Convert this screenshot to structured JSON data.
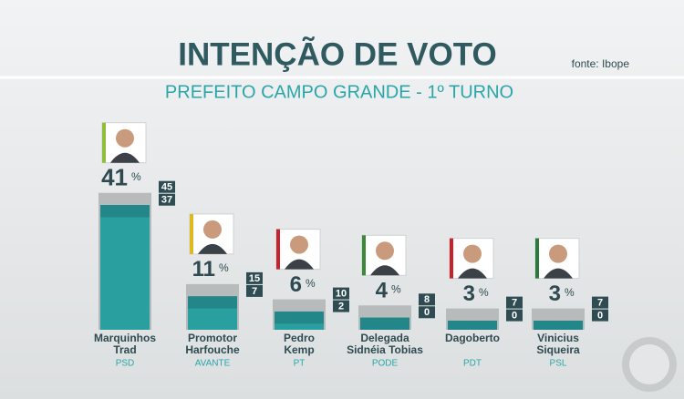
{
  "chart_data": {
    "type": "bar",
    "title": "INTENÇÃO DE VOTO",
    "subtitle": "PREFEITO CAMPO GRANDE - 1º TURNO",
    "source": "fonte: Ibope",
    "unit": "%",
    "categories": [
      [
        "Marquinhos",
        "Trad"
      ],
      [
        "Promotor",
        "Harfouche"
      ],
      [
        "Pedro",
        "Kemp"
      ],
      [
        "Delegada",
        "Sidnéia Tobias"
      ],
      [
        "Dagoberto"
      ],
      [
        "Vinicius",
        "Siqueira"
      ]
    ],
    "parties": [
      "PSD",
      "AVANTE",
      "PT",
      "PODE",
      "PDT",
      "PSL"
    ],
    "values": [
      41,
      11,
      6,
      4,
      3,
      3
    ],
    "upper": [
      45,
      15,
      10,
      8,
      7,
      7
    ],
    "lower": [
      37,
      7,
      2,
      0,
      0,
      0
    ],
    "color": "#2a9fa0"
  }
}
